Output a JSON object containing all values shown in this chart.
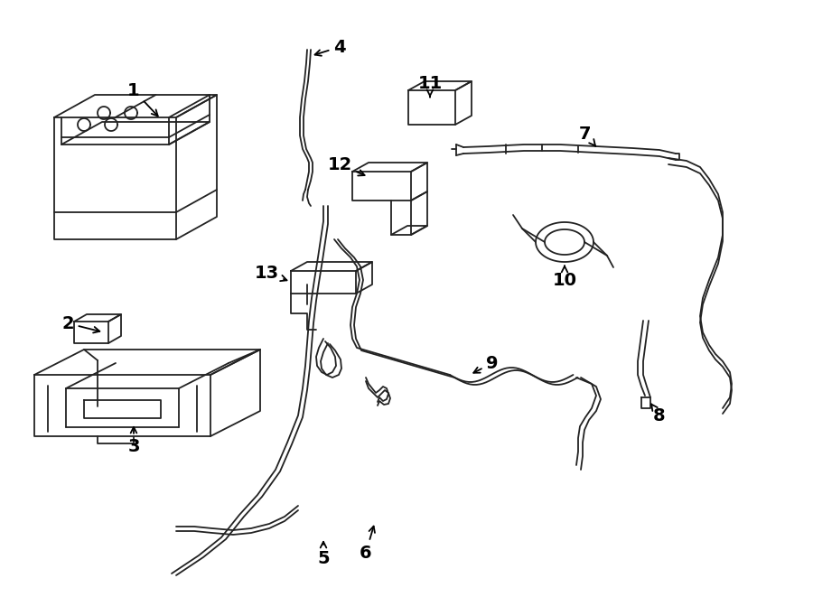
{
  "bg_color": "#ffffff",
  "line_color": "#222222",
  "label_color": "#000000",
  "figsize": [
    9.0,
    6.61
  ],
  "dpi": 100
}
